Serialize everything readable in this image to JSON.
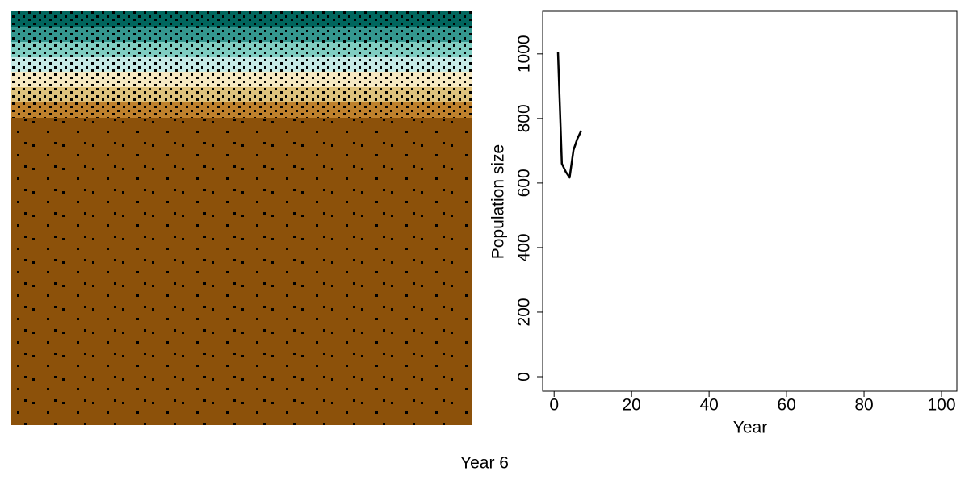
{
  "chart_data": {
    "type": "line",
    "caption": "Year 6",
    "xlabel": "Year",
    "ylabel": "Population size",
    "x": [
      1,
      2,
      3,
      4,
      5,
      6,
      7
    ],
    "series": [
      {
        "color": "#000000",
        "values": [
          1005,
          660,
          635,
          617,
          702,
          737,
          762
        ]
      }
    ],
    "xlim": [
      -2.96,
      103.96
    ],
    "xticks": [
      0,
      20,
      40,
      60,
      80,
      100
    ],
    "ylim": [
      -45,
      1132
    ],
    "yticks": [
      0,
      200,
      400,
      600,
      800,
      1000
    ]
  }
}
